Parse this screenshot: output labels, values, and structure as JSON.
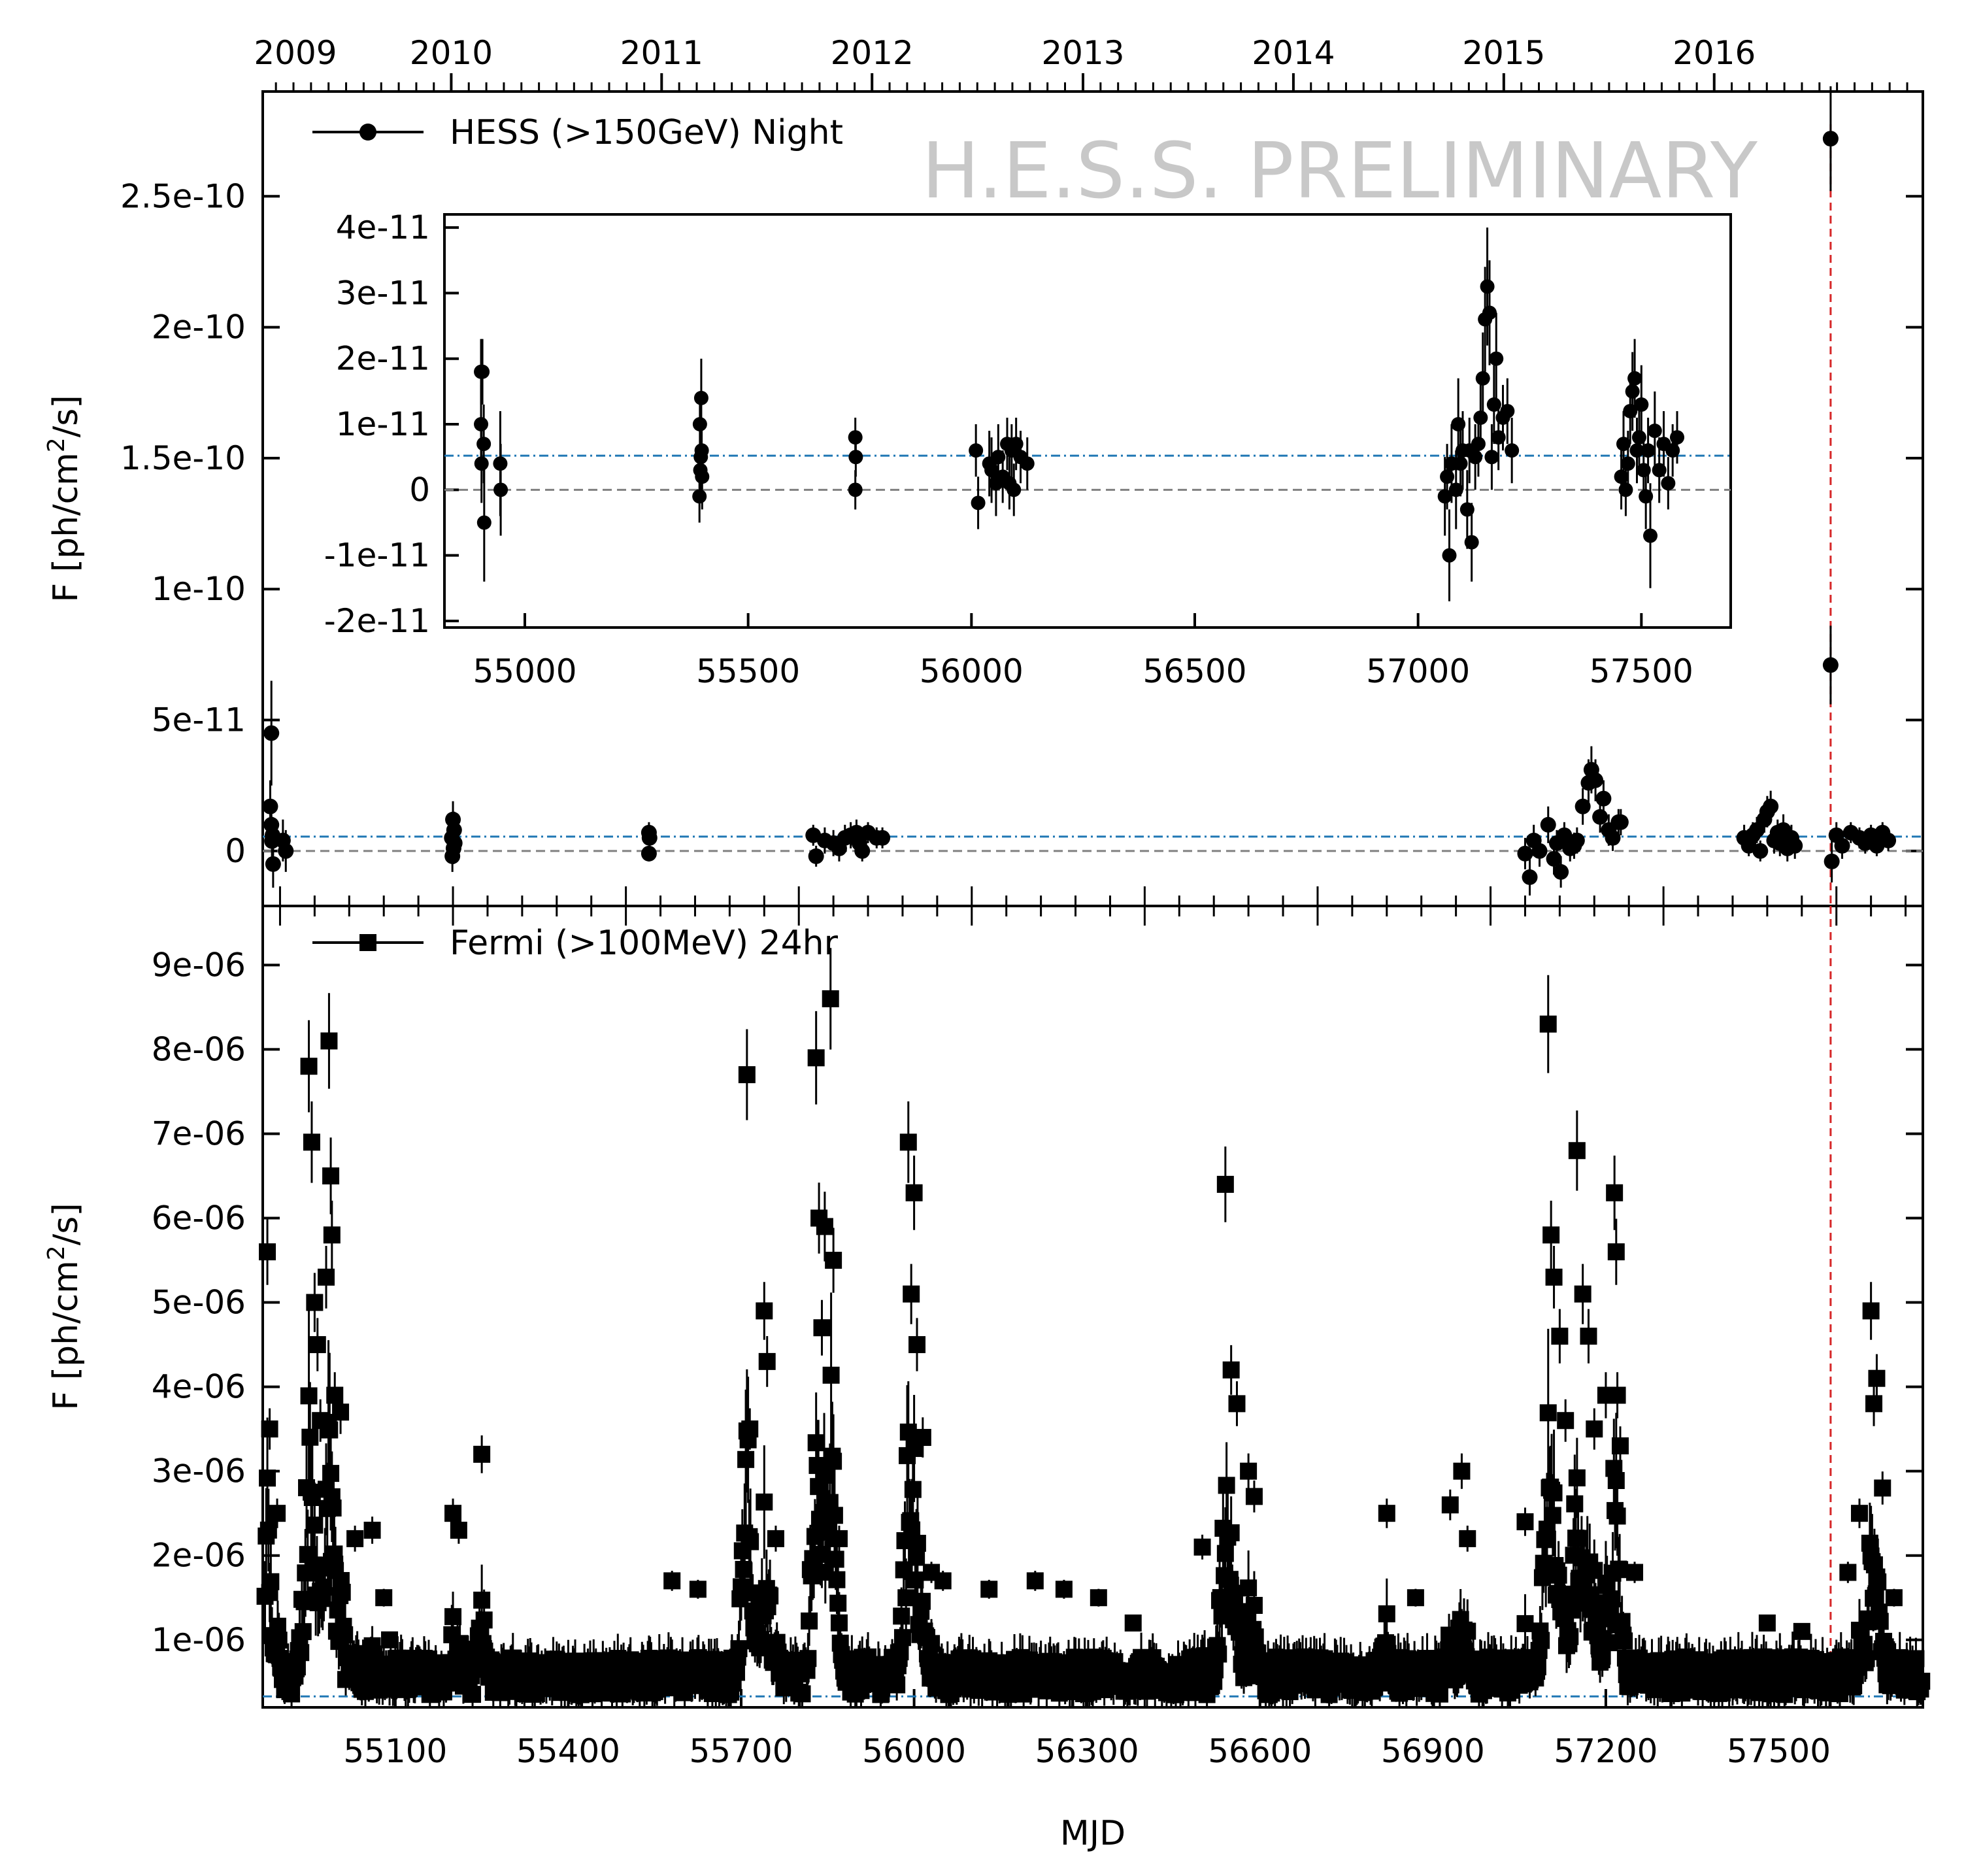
{
  "watermark": "H.E.S.S. PRELIMINARY",
  "colors": {
    "points": "#000000",
    "mean_line": "#1f77b4",
    "zero_line": "#808080",
    "flare_marker": "#d62728",
    "watermark": "#c8c8c8"
  },
  "chart_data": [
    {
      "id": "hess",
      "type": "scatter",
      "title": "",
      "legend": "HESS (>150GeV) Night",
      "legend_loc": "top-left",
      "marker": "circle",
      "ylabel_html": "F [ph/cm<tspan baseline-shift=\"super\" font-size=\"36\">2</tspan>/s]",
      "ylabel": "F [ph/cm2/s]",
      "xlim": [
        54870,
        57750
      ],
      "ylim": [
        -2.1e-11,
        2.9e-10
      ],
      "yticks": [
        0,
        5e-11,
        1e-10,
        1.5e-10,
        2e-10,
        2.5e-10
      ],
      "yticklabels": [
        "0",
        "5e-11",
        "1e-10",
        "1.5e-10",
        "2e-10",
        "2.5e-10"
      ],
      "mean_flux": 5.5e-12,
      "flare_mjd": 57590,
      "year_ticks": [
        54832,
        55197,
        55562,
        55927,
        56293,
        56658,
        57023,
        57388
      ],
      "year_labels": [
        "2009",
        "2010",
        "2011",
        "2012",
        "2013",
        "2014",
        "2015",
        "2016"
      ],
      "points": [
        [
          54885,
          4.5e-11,
          2e-11
        ],
        [
          54883,
          1.7e-11,
          1e-11
        ],
        [
          54885,
          1e-11,
          8e-12
        ],
        [
          54887,
          6e-12,
          7e-12
        ],
        [
          54886,
          3.8e-12,
          7e-12
        ],
        [
          54888,
          -5e-12,
          9e-12
        ],
        [
          54905,
          4e-12,
          8e-12
        ],
        [
          54910,
          0,
          8e-12
        ],
        [
          55200,
          1.2e-11,
          7e-12
        ],
        [
          55202,
          8e-12,
          7e-12
        ],
        [
          55198,
          5e-12,
          6e-12
        ],
        [
          55203,
          3e-12,
          6e-12
        ],
        [
          55199,
          -2e-12,
          6e-12
        ],
        [
          55201,
          1e-12,
          6e-12
        ],
        [
          55540,
          7e-12,
          4e-12
        ],
        [
          55541,
          5e-12,
          4e-12
        ],
        [
          55540,
          -1e-12,
          3e-12
        ],
        [
          55825,
          6e-12,
          4e-12
        ],
        [
          55830,
          -2e-12,
          4e-12
        ],
        [
          55845,
          4e-12,
          5e-12
        ],
        [
          55860,
          3e-12,
          5e-12
        ],
        [
          55870,
          1e-12,
          5e-12
        ],
        [
          55880,
          5e-12,
          5e-12
        ],
        [
          55890,
          6e-12,
          5e-12
        ],
        [
          55900,
          7e-12,
          5e-12
        ],
        [
          55905,
          3e-12,
          4e-12
        ],
        [
          55910,
          0,
          4e-12
        ],
        [
          55920,
          7e-12,
          4e-12
        ],
        [
          55935,
          5e-12,
          4e-12
        ],
        [
          55945,
          5e-12,
          4e-12
        ],
        [
          57060,
          -1e-12,
          6e-12
        ],
        [
          57068,
          -1e-11,
          7e-12
        ],
        [
          57075,
          4e-12,
          6e-12
        ],
        [
          57085,
          0,
          6e-12
        ],
        [
          57100,
          1e-11,
          7e-12
        ],
        [
          57110,
          -3e-12,
          6e-12
        ],
        [
          57115,
          3e-12,
          5e-12
        ],
        [
          57122,
          -8e-12,
          6e-12
        ],
        [
          57128,
          6e-12,
          5e-12
        ],
        [
          57138,
          1e-12,
          5e-12
        ],
        [
          57145,
          2e-12,
          5e-12
        ],
        [
          57150,
          4e-12,
          5e-12
        ],
        [
          57160,
          1.7e-11,
          7e-12
        ],
        [
          57170,
          2.6e-11,
          9e-12
        ],
        [
          57175,
          3.1e-11,
          9e-12
        ],
        [
          57182,
          2.7e-11,
          8e-12
        ],
        [
          57190,
          1.3e-11,
          6e-12
        ],
        [
          57196,
          2e-11,
          7e-12
        ],
        [
          57205,
          8e-12,
          6e-12
        ],
        [
          57212,
          5e-12,
          5e-12
        ],
        [
          57222,
          1.1e-11,
          5e-12
        ],
        [
          57226,
          1.1e-11,
          5e-12
        ],
        [
          57440,
          5e-12,
          5e-12
        ],
        [
          57448,
          2e-12,
          4e-12
        ],
        [
          57455,
          6e-12,
          5e-12
        ],
        [
          57462,
          8e-12,
          5e-12
        ],
        [
          57468,
          0,
          4e-12
        ],
        [
          57475,
          1.2e-11,
          5e-12
        ],
        [
          57480,
          1.5e-11,
          6e-12
        ],
        [
          57486,
          1.7e-11,
          6e-12
        ],
        [
          57492,
          4e-12,
          5e-12
        ],
        [
          57498,
          7e-12,
          5e-12
        ],
        [
          57502,
          3e-12,
          5e-12
        ],
        [
          57508,
          8e-12,
          6e-12
        ],
        [
          57515,
          1e-12,
          5e-12
        ],
        [
          57522,
          5e-12,
          5e-12
        ],
        [
          57528,
          2e-12,
          5e-12
        ],
        [
          57590,
          2.72e-10,
          2e-11
        ],
        [
          57590,
          7.1e-11,
          1.5e-11
        ],
        [
          57592,
          -4e-12,
          8e-12
        ],
        [
          57600,
          6e-12,
          5e-12
        ],
        [
          57610,
          2e-12,
          5e-12
        ],
        [
          57625,
          7e-12,
          4e-12
        ],
        [
          57640,
          5e-12,
          4e-12
        ],
        [
          57650,
          3e-12,
          4e-12
        ],
        [
          57660,
          6e-12,
          4e-12
        ],
        [
          57670,
          2e-12,
          4e-12
        ],
        [
          57680,
          7e-12,
          4e-12
        ],
        [
          57690,
          4e-12,
          4e-12
        ]
      ]
    },
    {
      "id": "inset",
      "type": "scatter",
      "marker": "circle",
      "xlim": [
        54820,
        57700
      ],
      "ylim": [
        -2.1e-11,
        4.2e-11
      ],
      "xticks": [
        55000,
        55500,
        56000,
        56500,
        57000,
        57500
      ],
      "xticklabels": [
        "55000",
        "55500",
        "56000",
        "56500",
        "57000",
        "57500"
      ],
      "yticks": [
        -2e-11,
        -1e-11,
        0,
        1e-11,
        2e-11,
        3e-11,
        4e-11
      ],
      "yticklabels": [
        "-2e-11",
        "-1e-11",
        "0",
        "1e-11",
        "2e-11",
        "3e-11",
        "4e-11"
      ],
      "mean_flux": 5.2e-12,
      "points": [
        [
          54902,
          1.8e-11,
          5e-12
        ],
        [
          54905,
          1.8e-11,
          5e-12
        ],
        [
          54902,
          1e-11,
          6e-12
        ],
        [
          54908,
          7e-12,
          6e-12
        ],
        [
          54903,
          4e-12,
          6e-12
        ],
        [
          54909,
          -5e-12,
          9e-12
        ],
        [
          54945,
          4e-12,
          8e-12
        ],
        [
          54946,
          0,
          7e-12
        ],
        [
          55395,
          1.4e-11,
          6e-12
        ],
        [
          55392,
          1e-11,
          5e-12
        ],
        [
          55396,
          6e-12,
          5e-12
        ],
        [
          55393,
          3e-12,
          5e-12
        ],
        [
          55397,
          2e-12,
          5e-12
        ],
        [
          55391,
          -1e-12,
          4e-12
        ],
        [
          55394,
          5e-12,
          4e-12
        ],
        [
          55740,
          8e-12,
          3e-12
        ],
        [
          55741,
          5e-12,
          3e-12
        ],
        [
          55740,
          0,
          3e-12
        ],
        [
          56010,
          6e-12,
          4e-12
        ],
        [
          56015,
          -2e-12,
          4e-12
        ],
        [
          56040,
          4e-12,
          5e-12
        ],
        [
          56045,
          3e-12,
          5e-12
        ],
        [
          56055,
          1e-12,
          5e-12
        ],
        [
          56060,
          5e-12,
          5e-12
        ],
        [
          56070,
          2e-12,
          4e-12
        ],
        [
          56080,
          7e-12,
          4e-12
        ],
        [
          56085,
          1e-12,
          4e-12
        ],
        [
          56090,
          6e-12,
          4e-12
        ],
        [
          56095,
          0,
          4e-12
        ],
        [
          56100,
          7e-12,
          4e-12
        ],
        [
          56110,
          5e-12,
          4e-12
        ],
        [
          56125,
          4e-12,
          4e-12
        ],
        [
          57060,
          -1e-12,
          6e-12
        ],
        [
          57065,
          2e-12,
          5e-12
        ],
        [
          57070,
          -1e-11,
          7e-12
        ],
        [
          57075,
          4e-12,
          6e-12
        ],
        [
          57085,
          0,
          6e-12
        ],
        [
          57090,
          1e-11,
          7e-12
        ],
        [
          57095,
          4e-12,
          5e-12
        ],
        [
          57100,
          6e-12,
          6e-12
        ],
        [
          57110,
          -3e-12,
          6e-12
        ],
        [
          57115,
          6e-12,
          5e-12
        ],
        [
          57120,
          -8e-12,
          6e-12
        ],
        [
          57128,
          5e-12,
          5e-12
        ],
        [
          57135,
          7e-12,
          5e-12
        ],
        [
          57140,
          1.1e-11,
          5e-12
        ],
        [
          57145,
          1.7e-11,
          7e-12
        ],
        [
          57150,
          2.6e-11,
          8e-12
        ],
        [
          57155,
          3.1e-11,
          9e-12
        ],
        [
          57160,
          2.7e-11,
          8e-12
        ],
        [
          57165,
          5e-12,
          5e-12
        ],
        [
          57170,
          1.3e-11,
          6e-12
        ],
        [
          57175,
          2e-11,
          7e-12
        ],
        [
          57180,
          8e-12,
          5e-12
        ],
        [
          57190,
          1.1e-11,
          5e-12
        ],
        [
          57200,
          1.2e-11,
          5e-12
        ],
        [
          57210,
          6e-12,
          5e-12
        ],
        [
          57455,
          2e-12,
          5e-12
        ],
        [
          57460,
          7e-12,
          5e-12
        ],
        [
          57465,
          0,
          4e-12
        ],
        [
          57470,
          4e-12,
          5e-12
        ],
        [
          57475,
          1.2e-11,
          5e-12
        ],
        [
          57480,
          1.5e-11,
          6e-12
        ],
        [
          57485,
          1.7e-11,
          6e-12
        ],
        [
          57490,
          6e-12,
          5e-12
        ],
        [
          57495,
          8e-12,
          5e-12
        ],
        [
          57500,
          1.3e-11,
          6e-12
        ],
        [
          57505,
          3e-12,
          5e-12
        ],
        [
          57510,
          -1e-12,
          5e-12
        ],
        [
          57515,
          6e-12,
          5e-12
        ],
        [
          57520,
          -7e-12,
          8e-12
        ],
        [
          57530,
          9e-12,
          6e-12
        ],
        [
          57540,
          3e-12,
          5e-12
        ],
        [
          57550,
          7e-12,
          5e-12
        ],
        [
          57560,
          1e-12,
          4e-12
        ],
        [
          57570,
          6e-12,
          4e-12
        ],
        [
          57580,
          8e-12,
          4e-12
        ]
      ]
    },
    {
      "id": "fermi",
      "type": "scatter",
      "title": "",
      "legend": "Fermi (>100MeV) 24hr",
      "legend_loc": "top-left",
      "marker": "square",
      "xlabel": "MJD",
      "ylabel_html": "F [ph/cm<tspan baseline-shift=\"super\" font-size=\"36\">2</tspan>/s]",
      "ylabel": "F [ph/cm2/s]",
      "xlim": [
        54870,
        57750
      ],
      "ylim": [
        2e-07,
        9.7e-06
      ],
      "xticks": [
        55100,
        55400,
        55700,
        56000,
        56300,
        56600,
        56900,
        57200,
        57500
      ],
      "xticklabels": [
        "55100",
        "55400",
        "55700",
        "56000",
        "56300",
        "56600",
        "56900",
        "57200",
        "57500"
      ],
      "yticks": [
        1e-06,
        2e-06,
        3e-06,
        4e-06,
        5e-06,
        6e-06,
        7e-06,
        8e-06,
        9e-06
      ],
      "yticklabels": [
        "1e-06",
        "2e-06",
        "3e-06",
        "4e-06",
        "5e-06",
        "6e-06",
        "7e-06",
        "8e-06",
        "9e-06"
      ],
      "mean_flux": 3.3e-07,
      "flare_mjd": 57590,
      "peaks": [
        [
          54878,
          5.6e-06
        ],
        [
          54882,
          3.5e-06
        ],
        [
          54895,
          2.5e-06
        ],
        [
          54950,
          7.8e-06
        ],
        [
          54955,
          6.9e-06
        ],
        [
          54960,
          5e-06
        ],
        [
          54965,
          4.5e-06
        ],
        [
          54970,
          3.6e-06
        ],
        [
          54980,
          5.3e-06
        ],
        [
          54985,
          8.1e-06
        ],
        [
          54988,
          6.5e-06
        ],
        [
          54990,
          5.8e-06
        ],
        [
          54995,
          3.9e-06
        ],
        [
          55005,
          3.7e-06
        ],
        [
          55030,
          2.2e-06
        ],
        [
          55060,
          2.3e-06
        ],
        [
          55080,
          1.5e-06
        ],
        [
          55090,
          1e-06
        ],
        [
          55200,
          2.5e-06
        ],
        [
          55210,
          2.3e-06
        ],
        [
          55250,
          3.2e-06
        ],
        [
          55580,
          1.7e-06
        ],
        [
          55625,
          1.6e-06
        ],
        [
          55710,
          7.7e-06
        ],
        [
          55715,
          3.5e-06
        ],
        [
          55740,
          4.9e-06
        ],
        [
          55745,
          4.3e-06
        ],
        [
          55760,
          2.2e-06
        ],
        [
          55830,
          7.9e-06
        ],
        [
          55835,
          6e-06
        ],
        [
          55840,
          4.7e-06
        ],
        [
          55845,
          5.9e-06
        ],
        [
          55855,
          8.6e-06
        ],
        [
          55860,
          5.5e-06
        ],
        [
          55870,
          2.2e-06
        ],
        [
          55990,
          6.9e-06
        ],
        [
          55995,
          5.1e-06
        ],
        [
          56000,
          6.3e-06
        ],
        [
          56005,
          4.5e-06
        ],
        [
          56015,
          3.4e-06
        ],
        [
          56030,
          1.8e-06
        ],
        [
          56050,
          1.7e-06
        ],
        [
          56130,
          1.6e-06
        ],
        [
          56210,
          1.7e-06
        ],
        [
          56260,
          1.6e-06
        ],
        [
          56320,
          1.5e-06
        ],
        [
          56380,
          1.2e-06
        ],
        [
          56540,
          6.4e-06
        ],
        [
          56550,
          4.2e-06
        ],
        [
          56560,
          3.8e-06
        ],
        [
          56500,
          2.1e-06
        ],
        [
          56580,
          3e-06
        ],
        [
          56590,
          2.7e-06
        ],
        [
          56820,
          2.5e-06
        ],
        [
          56870,
          1.5e-06
        ],
        [
          56930,
          2.6e-06
        ],
        [
          56950,
          3e-06
        ],
        [
          56960,
          2.2e-06
        ],
        [
          57060,
          2.4e-06
        ],
        [
          57100,
          8.3e-06
        ],
        [
          57105,
          5.8e-06
        ],
        [
          57110,
          5.3e-06
        ],
        [
          57120,
          4.6e-06
        ],
        [
          57130,
          3.6e-06
        ],
        [
          57150,
          6.8e-06
        ],
        [
          57160,
          5.1e-06
        ],
        [
          57170,
          4.6e-06
        ],
        [
          57180,
          3.5e-06
        ],
        [
          57200,
          3.9e-06
        ],
        [
          57215,
          6.3e-06
        ],
        [
          57218,
          5.6e-06
        ],
        [
          57220,
          3.9e-06
        ],
        [
          57225,
          3.3e-06
        ],
        [
          57250,
          1.8e-06
        ],
        [
          57480,
          1.2e-06
        ],
        [
          57540,
          1.1e-06
        ],
        [
          57620,
          1.8e-06
        ],
        [
          57640,
          2.5e-06
        ],
        [
          57660,
          4.9e-06
        ],
        [
          57665,
          3.8e-06
        ],
        [
          57670,
          4.1e-06
        ],
        [
          57680,
          2.8e-06
        ],
        [
          57700,
          1.5e-06
        ]
      ]
    }
  ]
}
